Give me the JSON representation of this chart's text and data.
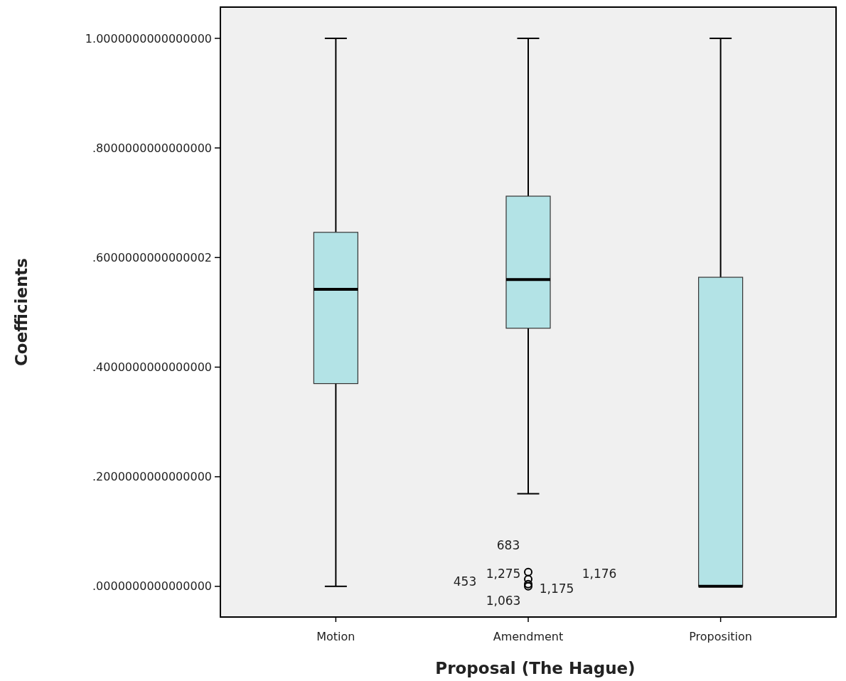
{
  "chart_data": {
    "type": "box",
    "xlabel": "Proposal (The Hague)",
    "ylabel": "Coefficients",
    "categories": [
      "Motion",
      "Amendment",
      "Proposition"
    ],
    "color": "#b3e3e6",
    "boxes": [
      {
        "low": 0,
        "q1": 0.37,
        "median": 0.542,
        "q3": 0.646,
        "high": 1
      },
      {
        "low": 0.169,
        "q1": 0.471,
        "median": 0.56,
        "q3": 0.712,
        "high": 1,
        "outliers": [
          0.026,
          0.013,
          0.004,
          0
        ]
      },
      {
        "low": 0,
        "q1": 0,
        "median": 0,
        "q3": 0.564,
        "high": 1
      }
    ],
    "ylim": [
      -0.056,
      1.057
    ],
    "yticks": [
      {
        "value": 0,
        "label": ".0000000000000000"
      },
      {
        "value": 0.2,
        "label": ".2000000000000000"
      },
      {
        "value": 0.4,
        "label": ".4000000000000000"
      },
      {
        "value": 0.6,
        "label": ".6000000000000002"
      },
      {
        "value": 0.8,
        "label": ".8000000000000000"
      },
      {
        "value": 1,
        "label": "1.0000000000000000"
      }
    ],
    "grid": false,
    "annotations": [
      "683",
      "1,275",
      "453",
      "1,176",
      "1,175",
      "1,063"
    ]
  }
}
